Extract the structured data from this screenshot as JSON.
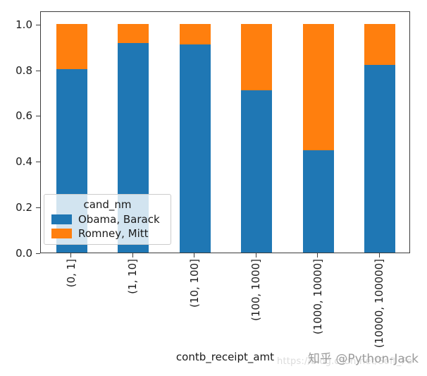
{
  "chart_data": {
    "type": "bar",
    "stacked": true,
    "normalized": true,
    "title": "",
    "xlabel": "contb_receipt_amt",
    "ylabel": "",
    "categories": [
      "(0, 1]",
      "(1, 10]",
      "(10, 100]",
      "(100, 1000]",
      "(1000, 10000]",
      "(10000, 100000]"
    ],
    "series": [
      {
        "name": "Obama, Barack",
        "color": "#1f77b4",
        "values": [
          0.805,
          0.919,
          0.911,
          0.71,
          0.447,
          0.823
        ]
      },
      {
        "name": "Romney, Mitt",
        "color": "#ff7f0e",
        "values": [
          0.195,
          0.081,
          0.089,
          0.29,
          0.553,
          0.177
        ]
      }
    ],
    "yticks": [
      0.0,
      0.2,
      0.4,
      0.6,
      0.8,
      1.0
    ],
    "ytick_labels": [
      "0.0",
      "0.2",
      "0.4",
      "0.6",
      "0.8",
      "1.0"
    ],
    "ylim": [
      0,
      1.06
    ],
    "grid": false,
    "legend": {
      "title": "cand_nm",
      "position": "lower-left",
      "entries": [
        "Obama, Barack",
        "Romney, Mitt"
      ]
    }
  },
  "watermark": {
    "text": "知乎 @Python-Jack",
    "url": "https://blog.csdn.net/Soft_Po"
  },
  "colors": {
    "obama_blue": "#1f77b4",
    "romney_orange": "#ff7f0e",
    "spine": "#3c3c3c",
    "tick_text": "#1a1a1a",
    "watermark_text": "#9b9b9b",
    "watermark_url": "#dcdcdc"
  }
}
